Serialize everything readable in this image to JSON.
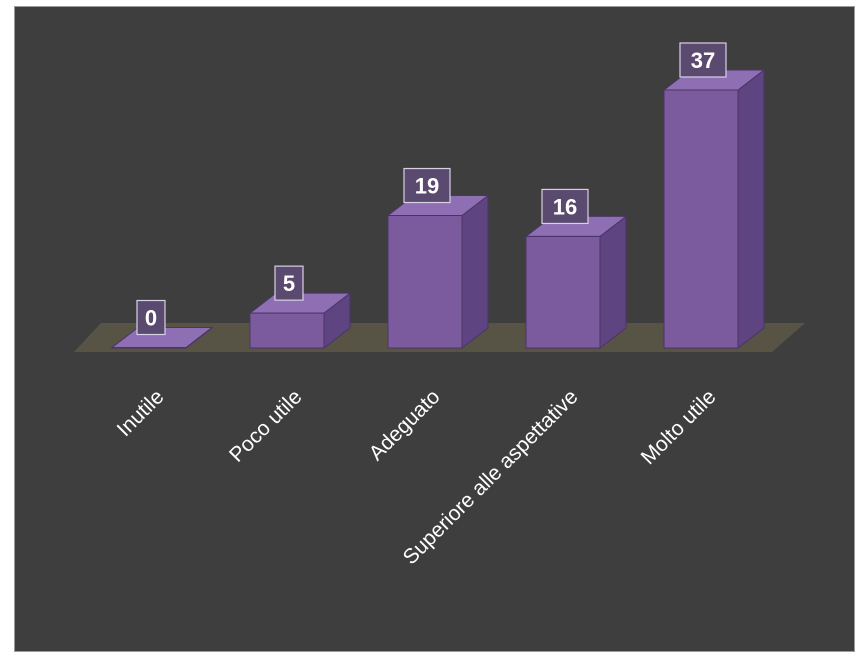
{
  "chart_data": {
    "type": "bar",
    "style": "3d-column",
    "categories": [
      "Inutile",
      "Poco utile",
      "Adeguato",
      "Superiore alle aspettative",
      "Molto utile"
    ],
    "values": [
      0,
      5,
      19,
      16,
      37
    ],
    "data_labels": [
      "0",
      "5",
      "19",
      "16",
      "37"
    ],
    "ylim": [
      0,
      37
    ],
    "grid": false,
    "legend": "none",
    "colors": {
      "background": "#3e3e3e",
      "bar_front": "#7c5a9e",
      "bar_side": "#5e4480",
      "bar_top": "#8f6fb4",
      "floor": "#5a5546",
      "text": "#ffffff"
    }
  }
}
